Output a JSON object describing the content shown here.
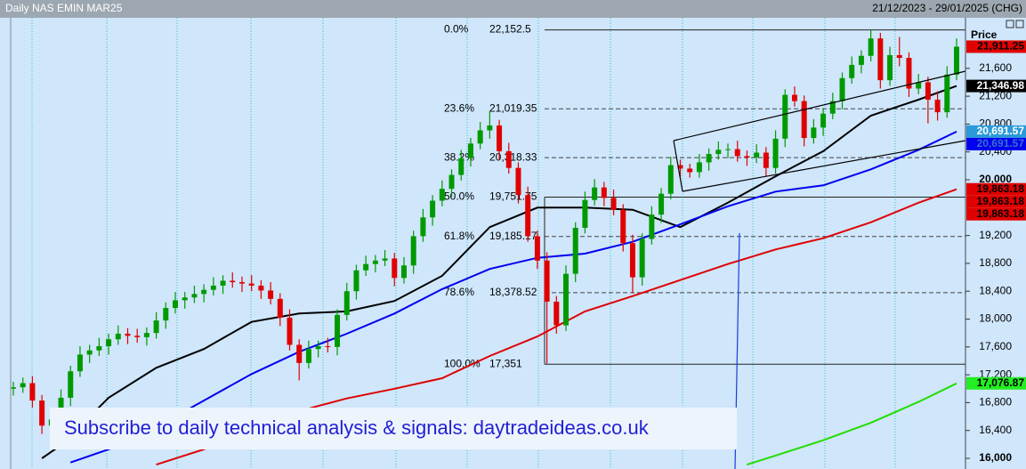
{
  "chart_data": {
    "type": "candlestick",
    "title": "Daily NAS EMIN MAR25",
    "date_range": "21/12/2023 - 29/01/2025 (CHG)",
    "price_header": "Price",
    "banner": "Subscribe to daily technical analysis & signals: daytradeideas.co.uk",
    "ylim": [
      15847,
      22326
    ],
    "yticks": [
      {
        "value": 16000,
        "label": "16,000",
        "bold": true
      },
      {
        "value": 16400,
        "label": "16,400"
      },
      {
        "value": 16800,
        "label": "16,800"
      },
      {
        "value": 17200,
        "label": "17,200"
      },
      {
        "value": 17600,
        "label": "17,600"
      },
      {
        "value": 18000,
        "label": "18,000"
      },
      {
        "value": 18400,
        "label": "18,400"
      },
      {
        "value": 18800,
        "label": "18,800"
      },
      {
        "value": 19200,
        "label": "19,200"
      },
      {
        "value": 20000,
        "label": "20,000",
        "bold": true
      },
      {
        "value": 20400,
        "label": "20,400"
      },
      {
        "value": 20800,
        "label": "20,800"
      },
      {
        "value": 21200,
        "label": "21,200"
      },
      {
        "value": 21600,
        "label": "21,600"
      }
    ],
    "up_color": "#009a00",
    "down_color": "#e00000",
    "candles": {
      "open": [
        17000,
        17020,
        17080,
        16830,
        16470,
        16560,
        16870,
        17250,
        17490,
        17550,
        17610,
        17710,
        17790,
        17760,
        17740,
        17800,
        17980,
        18160,
        18270,
        18310,
        18360,
        18420,
        18480,
        18550,
        18530,
        18510,
        18480,
        18410,
        18290,
        18020,
        17630,
        17370,
        17570,
        17610,
        17600,
        18060,
        18400,
        18700,
        18790,
        18840,
        18870,
        18590,
        18770,
        19190,
        19460,
        19700,
        19870,
        20070,
        20310,
        20520,
        20710,
        20780,
        20410,
        20170,
        19780,
        19190,
        18840,
        18250,
        17910,
        18650,
        19310,
        19710,
        19890,
        19740,
        19570,
        19090,
        18600,
        19150,
        19500,
        19800,
        20210,
        20160,
        20110,
        20250,
        20370,
        20430,
        20440,
        20340,
        20320,
        20390,
        20170,
        20590,
        21220,
        21130,
        20600,
        20750,
        20950,
        21130,
        21460,
        21650,
        21780,
        22030,
        21430,
        21790,
        21750,
        21310,
        21400,
        21150,
        20970,
        21510
      ],
      "high": [
        17100,
        17160,
        17180,
        16910,
        16640,
        16990,
        17330,
        17610,
        17630,
        17730,
        17790,
        17910,
        17870,
        17860,
        17880,
        18100,
        18240,
        18390,
        18390,
        18480,
        18500,
        18600,
        18630,
        18670,
        18610,
        18630,
        18560,
        18530,
        18370,
        18140,
        17710,
        17690,
        17690,
        17730,
        18140,
        18520,
        18780,
        18910,
        18920,
        18990,
        18950,
        18890,
        19270,
        19580,
        19780,
        19990,
        20150,
        20430,
        20600,
        20830,
        20990,
        20860,
        20530,
        20250,
        19900,
        19270,
        18960,
        18330,
        18770,
        19390,
        19830,
        20010,
        19970,
        19860,
        19650,
        19210,
        19230,
        19620,
        19880,
        20330,
        20290,
        20230,
        20370,
        20450,
        20550,
        20520,
        20560,
        20420,
        20510,
        20470,
        20710,
        21300,
        21340,
        21210,
        20870,
        21030,
        21250,
        21540,
        21770,
        21860,
        22150,
        22110,
        21910,
        22050,
        21830,
        21520,
        21480,
        21270,
        21630,
        22030
      ],
      "low": [
        16900,
        16940,
        16730,
        16350,
        16390,
        16480,
        16750,
        17170,
        17370,
        17470,
        17490,
        17630,
        17640,
        17660,
        17620,
        17720,
        17860,
        18080,
        18150,
        18230,
        18240,
        18340,
        18360,
        18450,
        18390,
        18400,
        18290,
        18210,
        17900,
        17550,
        17120,
        17290,
        17450,
        17520,
        17480,
        17980,
        18280,
        18620,
        18670,
        18760,
        18470,
        18510,
        18650,
        19110,
        19340,
        19620,
        19750,
        19990,
        20190,
        20440,
        20590,
        20290,
        20090,
        19660,
        19110,
        18720,
        17360,
        17790,
        17830,
        18530,
        19230,
        19630,
        19620,
        19490,
        18970,
        18370,
        18480,
        19070,
        19380,
        19720,
        20040,
        20030,
        20030,
        20130,
        20290,
        20310,
        20260,
        20200,
        20240,
        20050,
        20090,
        20470,
        21050,
        20480,
        20520,
        20630,
        20870,
        21010,
        21380,
        21530,
        21700,
        21310,
        21350,
        21630,
        21190,
        21230,
        20810,
        20850,
        20890,
        21430
      ],
      "close": [
        17020,
        17080,
        16830,
        16470,
        16560,
        16870,
        17250,
        17490,
        17550,
        17610,
        17710,
        17790,
        17760,
        17740,
        17800,
        17980,
        18160,
        18270,
        18310,
        18360,
        18420,
        18480,
        18550,
        18530,
        18510,
        18480,
        18410,
        18290,
        18020,
        17630,
        17370,
        17570,
        17610,
        17600,
        18060,
        18400,
        18700,
        18790,
        18840,
        18870,
        18590,
        18770,
        19190,
        19460,
        19700,
        19870,
        20070,
        20310,
        20520,
        20710,
        20780,
        20410,
        20170,
        19780,
        19190,
        18840,
        18250,
        17910,
        18650,
        19310,
        19710,
        19890,
        19740,
        19570,
        19090,
        18600,
        19150,
        19500,
        19800,
        20210,
        20160,
        20110,
        20250,
        20370,
        20430,
        20440,
        20340,
        20320,
        20390,
        20170,
        20590,
        21220,
        21130,
        20600,
        20750,
        20950,
        21130,
        21460,
        21650,
        21780,
        22030,
        21430,
        21790,
        21750,
        21310,
        21400,
        21150,
        20970,
        21510,
        21911.25
      ]
    },
    "series": [
      {
        "color": "#000000",
        "x": [
          3,
          5,
          10,
          15,
          20,
          25,
          30,
          35,
          40,
          45,
          50,
          55,
          60,
          65,
          70,
          75,
          80,
          85,
          90,
          95,
          99
        ],
        "values": [
          16000,
          16190,
          16870,
          17300,
          17570,
          17960,
          18080,
          18110,
          18260,
          18620,
          19320,
          19600,
          19600,
          19570,
          19320,
          19670,
          20050,
          20410,
          20920,
          21150,
          21346.98
        ]
      },
      {
        "color": "#0000ee",
        "x": [
          6,
          10,
          15,
          20,
          25,
          30,
          35,
          40,
          45,
          50,
          55,
          60,
          65,
          70,
          75,
          80,
          85,
          90,
          95,
          99
        ],
        "values": [
          15940,
          16130,
          16450,
          16830,
          17210,
          17530,
          17790,
          18080,
          18430,
          18720,
          18880,
          18940,
          19110,
          19360,
          19620,
          19830,
          19920,
          20150,
          20430,
          20691.57
        ]
      },
      {
        "color": "#e00000",
        "x": [
          15,
          20,
          25,
          30,
          35,
          40,
          45,
          50,
          55,
          60,
          65,
          70,
          75,
          80,
          85,
          90,
          95,
          99
        ],
        "values": [
          15910,
          16130,
          16450,
          16680,
          16860,
          17000,
          17150,
          17470,
          17750,
          18110,
          18330,
          18560,
          18790,
          19000,
          19160,
          19390,
          19670,
          19863.18
        ]
      },
      {
        "color": "#22dd00",
        "x": [
          77,
          80,
          85,
          90,
          95,
          99
        ],
        "values": [
          15910,
          16040,
          16260,
          16510,
          16810,
          17076.87
        ]
      }
    ],
    "fib_levels": [
      {
        "ratio": "0.0%",
        "price": 22152.5,
        "price_label": "22,152.5",
        "dashed": false
      },
      {
        "ratio": "23.6%",
        "price": 21019.35,
        "price_label": "21,019.35",
        "dashed": true
      },
      {
        "ratio": "38.2%",
        "price": 20318.33,
        "price_label": "20,318.33",
        "dashed": true
      },
      {
        "ratio": "50.0%",
        "price": 19751.75,
        "price_label": "19,751.75",
        "dashed": false
      },
      {
        "ratio": "61.8%",
        "price": 19185.17,
        "price_label": "19,185.17",
        "dashed": true
      },
      {
        "ratio": "78.6%",
        "price": 18378.52,
        "price_label": "18,378.52",
        "dashed": true
      },
      {
        "ratio": "100.0%",
        "price": 17351,
        "price_label": "17,351",
        "dashed": false
      }
    ],
    "price_labels": [
      {
        "value": 21911.25,
        "label": "21,911.25",
        "color": "#e00000",
        "text_color": "#000000"
      },
      {
        "value": 21346.98,
        "label": "21,346.98",
        "color": "#000000",
        "text_color": "#ffffff"
      },
      {
        "value": 20691.57,
        "label": "20,691.57",
        "color": "#2a9ad8",
        "text_color": "#ffffff"
      },
      {
        "value": 20691.57,
        "label": "20,691.57",
        "color": "#0000ee",
        "text_color": "#3a6fd0"
      },
      {
        "value": 19863.18,
        "label": "19,863.18",
        "color": "#e00000",
        "text_color": "#000000"
      },
      {
        "value": 19863.18,
        "label": "19,863.18",
        "color": "#e00000",
        "text_color": "#000000"
      },
      {
        "value": 19863.18,
        "label": "19,863.18",
        "color": "#e00000",
        "text_color": "#000000"
      },
      {
        "value": 17076.87,
        "label": "17,076.87",
        "color": "#22ee22",
        "text_color": "#000000"
      }
    ]
  }
}
